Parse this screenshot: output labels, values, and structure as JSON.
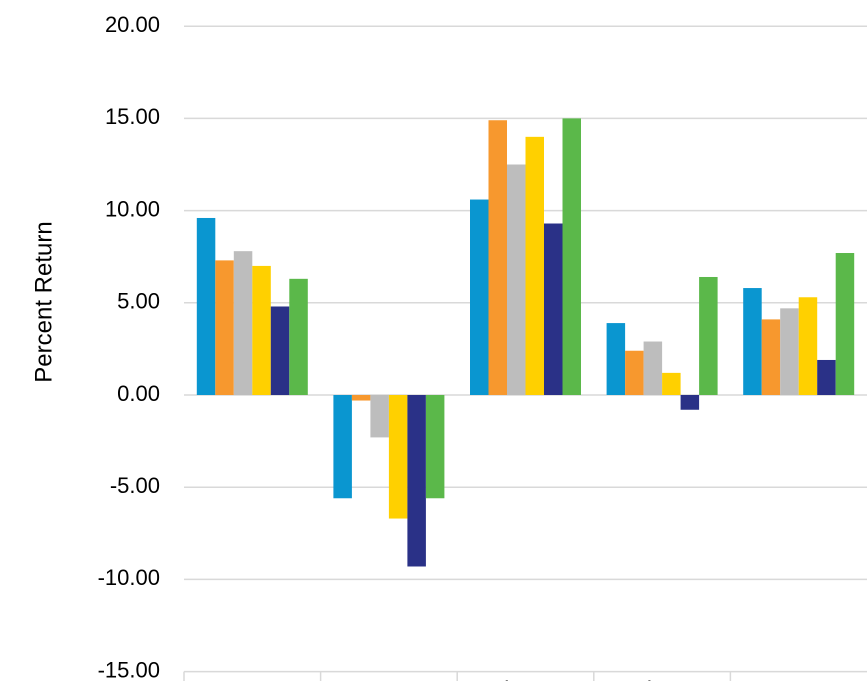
{
  "chart_data": {
    "type": "bar",
    "title": "",
    "xlabel": "",
    "ylabel": "Percent Return",
    "ylim": [
      -15,
      20
    ],
    "yticks": [
      "20.00",
      "15.00",
      "10.00",
      "5.00",
      "0.00",
      "-5.00",
      "-10.00",
      "-15.00"
    ],
    "ytick_values": [
      20,
      15,
      10,
      5,
      0,
      -5,
      -10,
      -15
    ],
    "grid": true,
    "legend": "none",
    "categories": [
      "Consumt",
      "Consu",
      "Financ",
      "Finan",
      "Tran"
    ],
    "colors": [
      "#0a96d0",
      "#f7982e",
      "#bdbdbd",
      "#ffd000",
      "#2a3187",
      "#5bb84a"
    ],
    "series": [
      {
        "values": [
          9.6,
          -5.6,
          10.6,
          3.9,
          5.8
        ]
      },
      {
        "values": [
          7.3,
          -0.3,
          14.9,
          2.4,
          4.1
        ]
      },
      {
        "values": [
          7.8,
          -2.3,
          12.5,
          2.9,
          4.7
        ]
      },
      {
        "values": [
          7.0,
          -6.7,
          14.0,
          1.2,
          5.3
        ]
      },
      {
        "values": [
          4.8,
          -9.3,
          9.3,
          -0.8,
          1.9
        ]
      },
      {
        "values": [
          6.3,
          -5.6,
          15.0,
          6.4,
          7.7
        ]
      }
    ]
  }
}
